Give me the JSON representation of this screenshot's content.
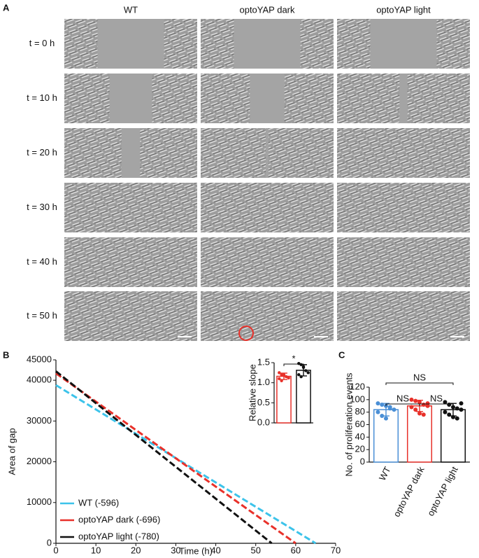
{
  "panel_a": {
    "label": "A",
    "columns": [
      "WT",
      "optoYAP dark",
      "optoYAP light"
    ],
    "rows": [
      "t = 0 h",
      "t = 10 h",
      "t = 20 h",
      "t = 30 h",
      "t = 40 h",
      "t = 50 h"
    ]
  },
  "chart_data": [
    {
      "type": "line",
      "label": "B",
      "xlabel": "Time (h)",
      "ylabel": "Area of gap",
      "xlim": [
        0,
        70
      ],
      "xticks": [
        0,
        10,
        20,
        30,
        40,
        50,
        60,
        70
      ],
      "ylim": [
        0,
        45000
      ],
      "yticks": [
        0,
        10000,
        20000,
        30000,
        40000,
        45000
      ],
      "legend": "lower left",
      "series": [
        {
          "name": "WT (-596)",
          "color": "#3cc3ea",
          "x": [
            0,
            65
          ],
          "values": [
            38800,
            0
          ]
        },
        {
          "name": "optoYAP dark (-696)",
          "color": "#e8312a",
          "x": [
            0,
            60
          ],
          "values": [
            41700,
            0
          ]
        },
        {
          "name": "optoYAP light (-780)",
          "color": "#111111",
          "x": [
            0,
            54
          ],
          "values": [
            42200,
            0
          ]
        }
      ]
    },
    {
      "type": "bar",
      "label": "C",
      "ylabel": "No. of proliferation events",
      "categories": [
        "WT",
        "optoYAP dark",
        "optoYAP light"
      ],
      "values": [
        84,
        90,
        84
      ],
      "errors": [
        10,
        9,
        10
      ],
      "colors": [
        "#4a8fd6",
        "#e8312a",
        "#111111"
      ],
      "points": [
        [
          94,
          92,
          90,
          86,
          84,
          80,
          74,
          70,
          88
        ],
        [
          100,
          98,
          96,
          92,
          90,
          88,
          84,
          78,
          76,
          94
        ],
        [
          96,
          92,
          88,
          86,
          84,
          80,
          76,
          72,
          70,
          94
        ]
      ],
      "ylim": [
        0,
        120
      ],
      "yticks": [
        0,
        20,
        40,
        60,
        80,
        100,
        120
      ],
      "annotations": [
        "NS",
        "NS",
        "NS"
      ]
    },
    {
      "type": "bar",
      "ylabel": "Relative slope",
      "categories": [
        null,
        null
      ],
      "values": [
        1.16,
        1.31
      ],
      "errors": [
        0.08,
        0.14
      ],
      "colors": [
        "#e8312a",
        "#111111"
      ],
      "points": [
        [
          1.25,
          1.2,
          1.18,
          1.15,
          1.12,
          1.1,
          1.05,
          1.2
        ],
        [
          1.48,
          1.45,
          1.38,
          1.3,
          1.25,
          1.2,
          1.15,
          1.4
        ]
      ],
      "ylim": [
        0,
        1.5
      ],
      "yticks": [
        {
          "value": 0,
          "label": "0.0"
        },
        {
          "value": 0.5,
          "label": "0.5"
        },
        {
          "value": 1,
          "label": "1.0"
        },
        {
          "value": 1.5,
          "label": "1.5"
        }
      ],
      "annotations": [
        "*"
      ]
    }
  ]
}
